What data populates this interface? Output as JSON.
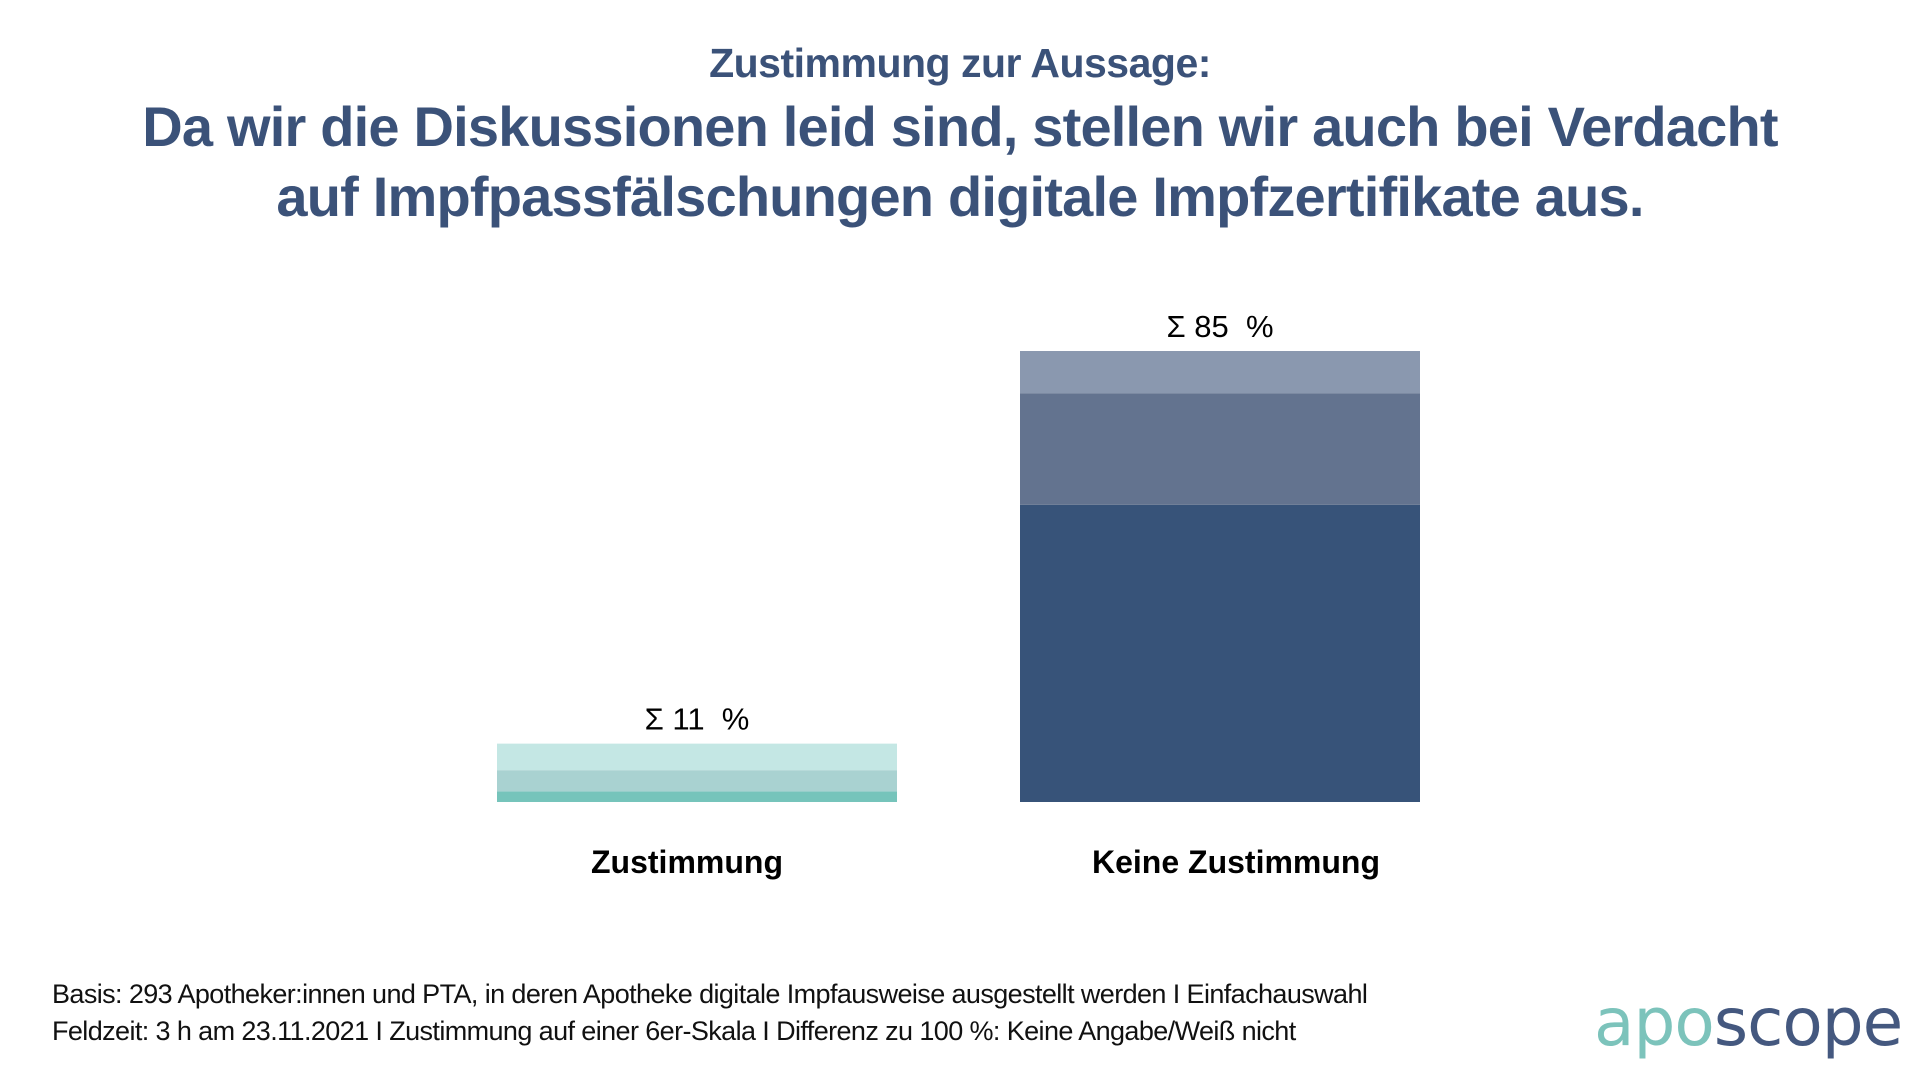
{
  "header": {
    "subtitle": "Zustimmung zur Aussage:",
    "title_lines": [
      "Da wir die Diskussionen leid sind, stellen wir auch bei Verdacht",
      "auf Impfpassfälschungen digitale Impfzertifikate aus."
    ]
  },
  "chart_data": {
    "type": "bar",
    "stacked": true,
    "title": "Zustimmung zur Aussage: Da wir die Diskussionen leid sind, stellen wir auch bei Verdacht auf Impfpassfälschungen digitale Impfzertifikate aus.",
    "xlabel": "",
    "ylabel": "",
    "ylim": [
      0,
      85
    ],
    "grid": false,
    "legend": "none",
    "unit": "%",
    "categories": [
      "Zustimmung",
      "Keine Zustimmung"
    ],
    "totals": [
      11,
      85
    ],
    "total_labels": [
      "Σ 11  %",
      "Σ 85  %"
    ],
    "stacks": [
      {
        "category": "Zustimmung",
        "segments": [
          {
            "level": "strong",
            "value": 2,
            "color": "#76C4BB"
          },
          {
            "level": "medium",
            "value": 4,
            "color": "#A9D2D1"
          },
          {
            "level": "weak",
            "value": 5,
            "color": "#C4E7E4"
          }
        ]
      },
      {
        "category": "Keine Zustimmung",
        "segments": [
          {
            "level": "strong",
            "value": 56,
            "color": "#375379"
          },
          {
            "level": "medium",
            "value": 21,
            "color": "#63738F"
          },
          {
            "level": "weak",
            "value": 8,
            "color": "#8A98AF"
          }
        ]
      }
    ]
  },
  "footer": {
    "lines": [
      "Basis: 293 Apotheker:innen und PTA, in deren Apotheke digitale Impfausweise ausgestellt werden I Einfachauswahl",
      "Feldzeit: 3 h am 23.11.2021 I Zustimmung auf einer 6er-Skala I Differenz zu 100 %: Keine Angabe/Weiß nicht"
    ]
  },
  "logo": {
    "part1": "apo",
    "part2": "scope",
    "colors": {
      "part1": "#7CC3BB",
      "part2": "#44587F"
    }
  }
}
